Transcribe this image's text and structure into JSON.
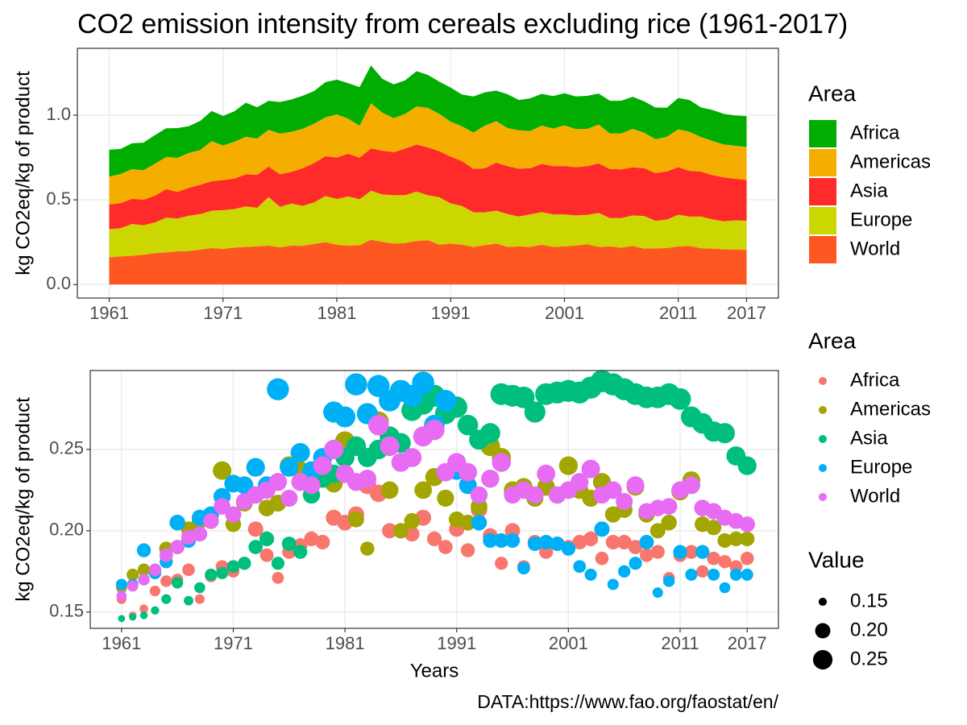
{
  "title": "CO2 emission intensity from cereals excluding rice (1961-2017)",
  "caption": "DATA:https://www.fao.org/faostat/en/",
  "chart_data": [
    {
      "type": "area",
      "stacked": true,
      "y_label": "kg CO2eq/kg of product",
      "legend_title": "Area",
      "xlim": [
        1958.2,
        2019.8
      ],
      "xticks": [
        1961,
        1971,
        1981,
        1991,
        2001,
        2011,
        2017
      ],
      "ylim": [
        -0.08,
        1.395
      ],
      "yticks": [
        {
          "value": 0,
          "label": "0.0"
        },
        {
          "value": 0.5,
          "label": "0.5"
        },
        {
          "value": 1,
          "label": "1.0"
        }
      ],
      "grid": true,
      "x": [
        1961,
        1962,
        1963,
        1964,
        1965,
        1966,
        1967,
        1968,
        1969,
        1970,
        1971,
        1972,
        1973,
        1974,
        1975,
        1976,
        1977,
        1978,
        1979,
        1980,
        1981,
        1982,
        1983,
        1984,
        1985,
        1986,
        1987,
        1988,
        1989,
        1990,
        1991,
        1992,
        1993,
        1994,
        1995,
        1996,
        1997,
        1998,
        1999,
        2000,
        2001,
        2002,
        2003,
        2004,
        2005,
        2006,
        2007,
        2008,
        2009,
        2010,
        2011,
        2012,
        2013,
        2014,
        2015,
        2016,
        2017
      ],
      "series": [
        {
          "name": "Africa",
          "color": "#00ad00",
          "values": [
            0.158,
            0.148,
            0.152,
            0.163,
            0.169,
            0.17,
            0.176,
            0.158,
            0.172,
            0.178,
            0.175,
            0.18,
            0.201,
            0.185,
            0.171,
            0.187,
            0.191,
            0.195,
            0.193,
            0.208,
            0.205,
            0.21,
            0.228,
            0.223,
            0.2,
            0.2,
            0.198,
            0.208,
            0.195,
            0.19,
            0.201,
            0.188,
            0.213,
            0.197,
            0.18,
            0.2,
            0.178,
            0.193,
            0.187,
            0.192,
            0.19,
            0.193,
            0.195,
            0.183,
            0.193,
            0.193,
            0.19,
            0.185,
            0.187,
            0.171,
            0.185,
            0.187,
            0.175,
            0.183,
            0.181,
            0.178,
            0.183
          ]
        },
        {
          "name": "Americas",
          "color": "#f5ae00",
          "values": [
            0.165,
            0.173,
            0.176,
            0.174,
            0.189,
            0.19,
            0.201,
            0.206,
            0.206,
            0.237,
            0.204,
            0.217,
            0.222,
            0.214,
            0.217,
            0.24,
            0.237,
            0.233,
            0.233,
            0.229,
            0.255,
            0.207,
            0.189,
            0.267,
            0.225,
            0.2,
            0.206,
            0.225,
            0.233,
            0.22,
            0.207,
            0.205,
            0.215,
            0.252,
            0.245,
            0.225,
            0.227,
            0.22,
            0.227,
            0.222,
            0.24,
            0.225,
            0.22,
            0.23,
            0.21,
            0.213,
            0.227,
            0.21,
            0.2,
            0.205,
            0.224,
            0.231,
            0.204,
            0.202,
            0.194,
            0.195,
            0.195
          ]
        },
        {
          "name": "Asia",
          "color": "#ff2a2a",
          "values": [
            0.146,
            0.147,
            0.148,
            0.151,
            0.158,
            0.168,
            0.157,
            0.165,
            0.173,
            0.174,
            0.178,
            0.18,
            0.19,
            0.195,
            0.18,
            0.192,
            0.187,
            0.222,
            0.232,
            0.235,
            0.245,
            0.252,
            0.245,
            0.25,
            0.258,
            0.254,
            0.274,
            0.278,
            0.283,
            0.272,
            0.276,
            0.265,
            0.256,
            0.26,
            0.284,
            0.283,
            0.282,
            0.273,
            0.284,
            0.285,
            0.286,
            0.285,
            0.288,
            0.292,
            0.29,
            0.287,
            0.284,
            0.282,
            0.282,
            0.284,
            0.281,
            0.27,
            0.266,
            0.261,
            0.26,
            0.246,
            0.24
          ]
        },
        {
          "name": "Europe",
          "color": "#ccd600",
          "values": [
            0.167,
            0.167,
            0.188,
            0.174,
            0.181,
            0.205,
            0.194,
            0.208,
            0.21,
            0.221,
            0.229,
            0.228,
            0.239,
            0.228,
            0.287,
            0.239,
            0.248,
            0.237,
            0.245,
            0.273,
            0.27,
            0.29,
            0.272,
            0.289,
            0.28,
            0.286,
            0.283,
            0.291,
            0.265,
            0.28,
            0.237,
            0.228,
            0.205,
            0.194,
            0.194,
            0.194,
            0.177,
            0.192,
            0.193,
            0.192,
            0.189,
            0.178,
            0.173,
            0.201,
            0.167,
            0.175,
            0.18,
            0.193,
            0.162,
            0.169,
            0.187,
            0.173,
            0.187,
            0.173,
            0.165,
            0.173,
            0.173
          ]
        },
        {
          "name": "World",
          "color": "#ff5722",
          "values": [
            0.16,
            0.166,
            0.17,
            0.176,
            0.185,
            0.19,
            0.196,
            0.198,
            0.206,
            0.215,
            0.21,
            0.218,
            0.222,
            0.225,
            0.23,
            0.22,
            0.23,
            0.228,
            0.24,
            0.25,
            0.235,
            0.23,
            0.232,
            0.265,
            0.252,
            0.242,
            0.245,
            0.258,
            0.262,
            0.236,
            0.242,
            0.236,
            0.222,
            0.232,
            0.242,
            0.222,
            0.225,
            0.222,
            0.235,
            0.222,
            0.225,
            0.23,
            0.238,
            0.222,
            0.225,
            0.218,
            0.228,
            0.212,
            0.214,
            0.215,
            0.225,
            0.228,
            0.214,
            0.212,
            0.208,
            0.206,
            0.204
          ]
        }
      ]
    },
    {
      "type": "scatter",
      "x_label": "Years",
      "y_label": "kg CO2eq/kg of product",
      "legend_title": "Area",
      "size_legend_title": "Value",
      "size_legend": [
        0.15,
        {
          "value": 0.2,
          "label": "0.20"
        },
        0.25
      ],
      "xlim": [
        1958.2,
        2019.8
      ],
      "xticks": [
        1961,
        1971,
        1981,
        1991,
        2001,
        2011,
        2017
      ],
      "ylim": [
        0.14,
        0.2985
      ],
      "yticks": [
        0.15,
        {
          "value": 0.2,
          "label": "0.20"
        },
        0.25
      ],
      "grid": true,
      "x": [
        1961,
        1962,
        1963,
        1964,
        1965,
        1966,
        1967,
        1968,
        1969,
        1970,
        1971,
        1972,
        1973,
        1974,
        1975,
        1976,
        1977,
        1978,
        1979,
        1980,
        1981,
        1982,
        1983,
        1984,
        1985,
        1986,
        1987,
        1988,
        1989,
        1990,
        1991,
        1992,
        1993,
        1994,
        1995,
        1996,
        1997,
        1998,
        1999,
        2000,
        2001,
        2002,
        2003,
        2004,
        2005,
        2006,
        2007,
        2008,
        2009,
        2010,
        2011,
        2012,
        2013,
        2014,
        2015,
        2016,
        2017
      ],
      "series": [
        {
          "name": "Africa",
          "color": "#f8766d",
          "values": [
            0.158,
            0.148,
            0.152,
            0.163,
            0.169,
            0.17,
            0.176,
            0.158,
            0.172,
            0.178,
            0.175,
            0.18,
            0.201,
            0.185,
            0.171,
            0.187,
            0.191,
            0.195,
            0.193,
            0.208,
            0.205,
            0.21,
            0.228,
            0.223,
            0.2,
            0.2,
            0.198,
            0.208,
            0.195,
            0.19,
            0.201,
            0.188,
            0.213,
            0.197,
            0.18,
            0.2,
            0.178,
            0.193,
            0.187,
            0.192,
            0.19,
            0.193,
            0.195,
            0.183,
            0.193,
            0.193,
            0.19,
            0.185,
            0.187,
            0.171,
            0.185,
            0.187,
            0.175,
            0.183,
            0.181,
            0.178,
            0.183
          ]
        },
        {
          "name": "Americas",
          "color": "#a3a500",
          "values": [
            0.165,
            0.173,
            0.176,
            0.174,
            0.189,
            0.19,
            0.201,
            0.206,
            0.206,
            0.237,
            0.204,
            0.217,
            0.222,
            0.214,
            0.217,
            0.24,
            0.237,
            0.233,
            0.233,
            0.229,
            0.255,
            0.207,
            0.189,
            0.267,
            0.225,
            0.2,
            0.206,
            0.225,
            0.233,
            0.22,
            0.207,
            0.205,
            0.215,
            0.252,
            0.245,
            0.225,
            0.227,
            0.22,
            0.227,
            0.222,
            0.24,
            0.225,
            0.22,
            0.23,
            0.21,
            0.213,
            0.227,
            0.21,
            0.2,
            0.205,
            0.224,
            0.231,
            0.204,
            0.202,
            0.194,
            0.195,
            0.195
          ]
        },
        {
          "name": "Asia",
          "color": "#00bf7d",
          "values": [
            0.146,
            0.147,
            0.148,
            0.151,
            0.158,
            0.168,
            0.157,
            0.165,
            0.173,
            0.174,
            0.178,
            0.18,
            0.19,
            0.195,
            0.18,
            0.192,
            0.187,
            0.222,
            0.232,
            0.235,
            0.245,
            0.252,
            0.245,
            0.25,
            0.258,
            0.254,
            0.274,
            0.278,
            0.283,
            0.272,
            0.276,
            0.265,
            0.256,
            0.26,
            0.284,
            0.283,
            0.282,
            0.273,
            0.284,
            0.285,
            0.286,
            0.285,
            0.288,
            0.292,
            0.29,
            0.287,
            0.284,
            0.282,
            0.282,
            0.284,
            0.281,
            0.27,
            0.266,
            0.261,
            0.26,
            0.246,
            0.24
          ]
        },
        {
          "name": "Europe",
          "color": "#00b0f6",
          "values": [
            0.167,
            0.167,
            0.188,
            0.174,
            0.181,
            0.205,
            0.194,
            0.208,
            0.21,
            0.221,
            0.229,
            0.228,
            0.239,
            0.228,
            0.287,
            0.239,
            0.248,
            0.237,
            0.245,
            0.273,
            0.27,
            0.29,
            0.272,
            0.289,
            0.28,
            0.286,
            0.283,
            0.291,
            0.265,
            0.28,
            0.237,
            0.228,
            0.205,
            0.194,
            0.194,
            0.194,
            0.177,
            0.192,
            0.193,
            0.192,
            0.189,
            0.178,
            0.173,
            0.201,
            0.167,
            0.175,
            0.18,
            0.193,
            0.162,
            0.169,
            0.187,
            0.173,
            0.187,
            0.173,
            0.165,
            0.173,
            0.173
          ]
        },
        {
          "name": "World",
          "color": "#e76bf3",
          "values": [
            0.16,
            0.166,
            0.17,
            0.176,
            0.185,
            0.19,
            0.196,
            0.198,
            0.206,
            0.215,
            0.21,
            0.218,
            0.222,
            0.225,
            0.23,
            0.22,
            0.23,
            0.228,
            0.24,
            0.25,
            0.235,
            0.23,
            0.232,
            0.265,
            0.252,
            0.242,
            0.245,
            0.258,
            0.262,
            0.236,
            0.242,
            0.236,
            0.222,
            0.232,
            0.242,
            0.222,
            0.225,
            0.222,
            0.235,
            0.222,
            0.225,
            0.23,
            0.238,
            0.222,
            0.225,
            0.218,
            0.228,
            0.212,
            0.214,
            0.215,
            0.225,
            0.228,
            0.214,
            0.212,
            0.208,
            0.206,
            0.204
          ]
        }
      ]
    }
  ]
}
